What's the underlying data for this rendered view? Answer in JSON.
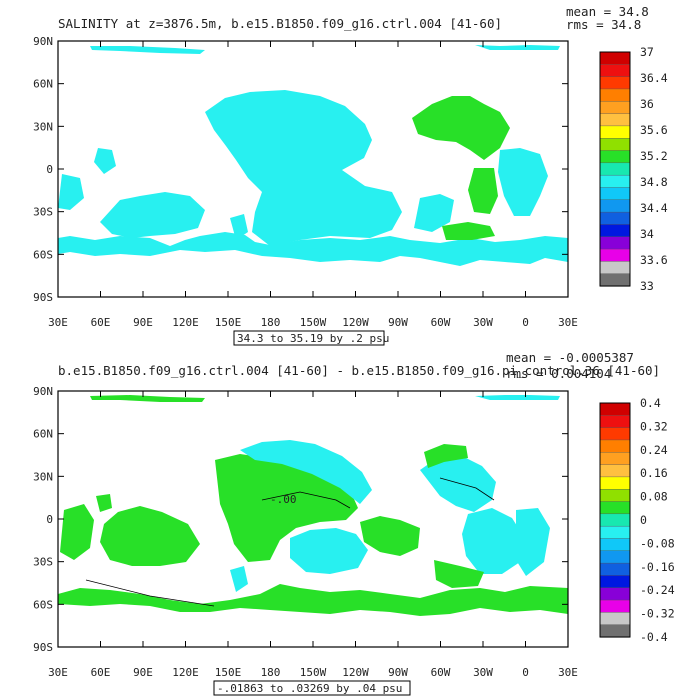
{
  "panels": [
    {
      "title": "SALINITY at z=3876.5m, b.e15.B1850.f09_g16.ctrl.004 [41-60]",
      "mean": "mean = 34.8",
      "rms": "rms = 34.8",
      "range_label": "34.3 to 35.19 by .2 psu",
      "lat_labels": [
        "90N",
        "60N",
        "30N",
        "0",
        "30S",
        "60S",
        "90S"
      ],
      "lon_labels": [
        "30E",
        "60E",
        "90E",
        "120E",
        "150E",
        "180",
        "150W",
        "120W",
        "90W",
        "60W",
        "30W",
        "0",
        "30E"
      ],
      "colorbar_labels": [
        "37",
        "36.4",
        "36",
        "35.6",
        "35.2",
        "34.8",
        "34.4",
        "34",
        "33.6",
        "33"
      ],
      "colorbar_colors": [
        "#d00000",
        "#ee1010",
        "#ff3a00",
        "#ff7f00",
        "#ffa020",
        "#ffc040",
        "#ffff00",
        "#90e000",
        "#28e028",
        "#18e8b0",
        "#28f0f0",
        "#10c8f8",
        "#1098f0",
        "#1060e0",
        "#0018e0",
        "#8800d8",
        "#e800e8",
        "#c8c8c8",
        "#707070"
      ],
      "fill_colors": {
        "main": "#28f0f0",
        "secondary": "#28e028"
      }
    },
    {
      "title": "b.e15.B1850.f09_g16.ctrl.004 [41-60] - b.e15.B1850.f09_g16.pi_control.36 [41-60]",
      "mean": "mean = -0.0005387",
      "rms": "rms = 0.004104",
      "range_label": "-.01863 to .03269 by .04 psu",
      "contour_label": "-.00",
      "lat_labels": [
        "90N",
        "60N",
        "30N",
        "0",
        "30S",
        "60S",
        "90S"
      ],
      "lon_labels": [
        "30E",
        "60E",
        "90E",
        "120E",
        "150E",
        "180",
        "150W",
        "120W",
        "90W",
        "60W",
        "30W",
        "0",
        "30E"
      ],
      "colorbar_labels": [
        "0.4",
        "0.32",
        "0.24",
        "0.16",
        "0.08",
        "0",
        "-0.08",
        "-0.16",
        "-0.24",
        "-0.32",
        "-0.4"
      ],
      "colorbar_colors": [
        "#d00000",
        "#ee1010",
        "#ff3a00",
        "#ff7f00",
        "#ffa020",
        "#ffc040",
        "#ffff00",
        "#90e000",
        "#28e028",
        "#18e8b0",
        "#28f0f0",
        "#10c8f8",
        "#1098f0",
        "#1060e0",
        "#0018e0",
        "#8800d8",
        "#e800e8",
        "#c8c8c8",
        "#707070"
      ],
      "fill_colors": {
        "main": "#28f0f0",
        "secondary": "#28e028"
      }
    }
  ]
}
